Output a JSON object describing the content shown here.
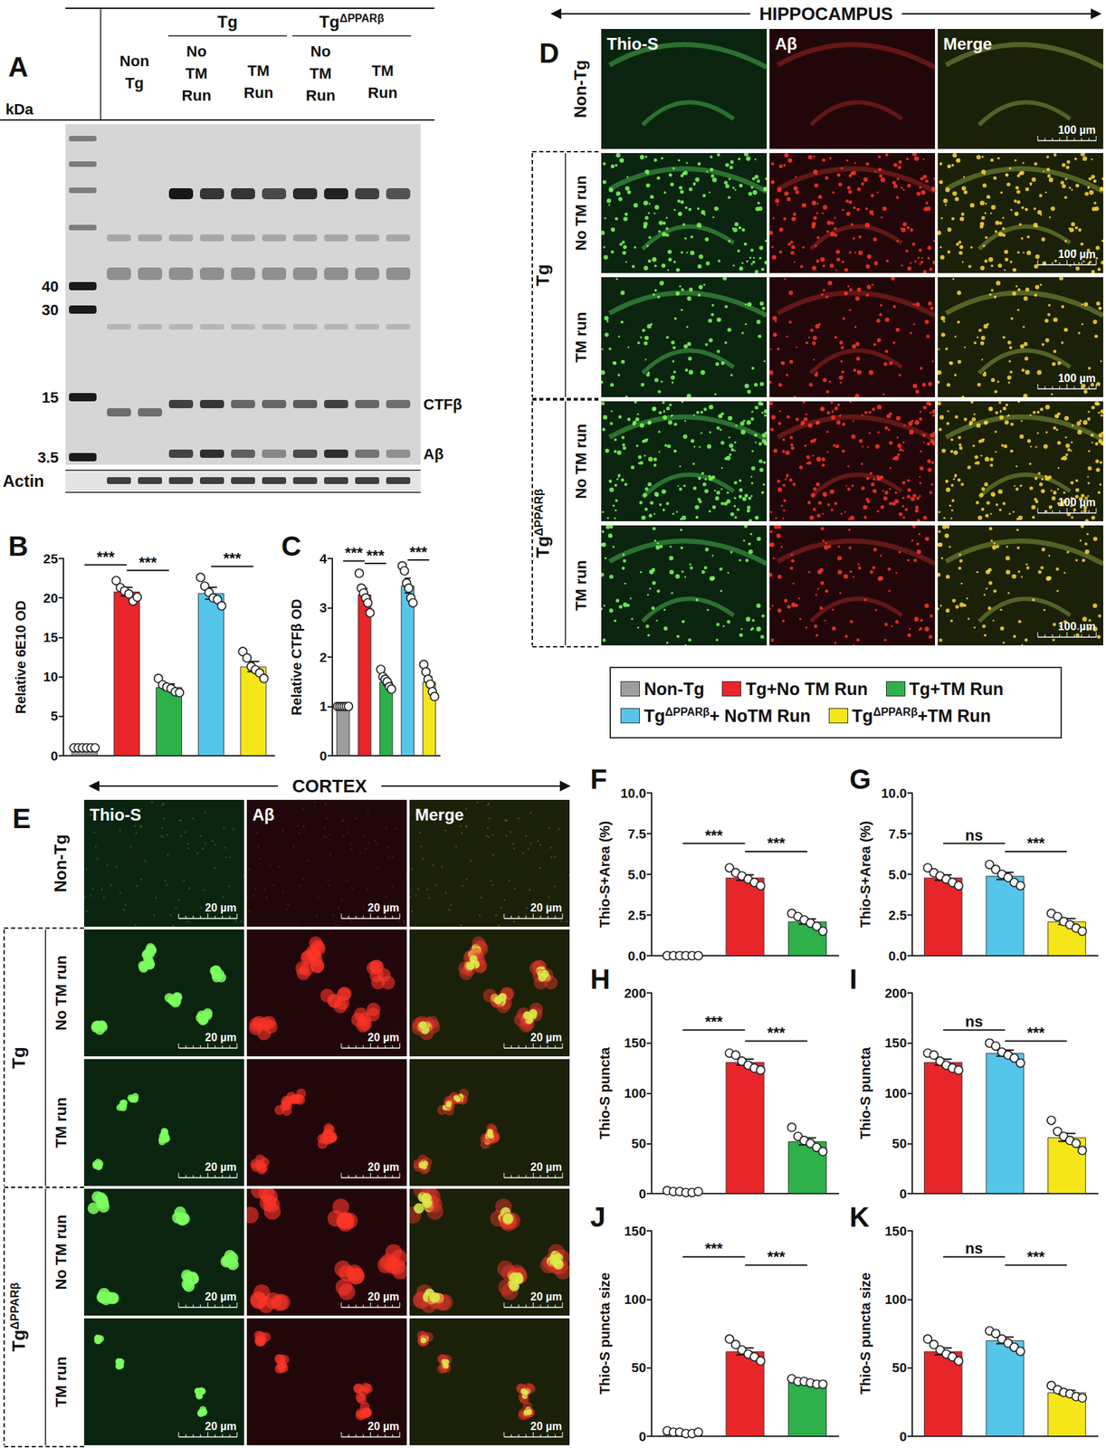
{
  "blot": {
    "panel": "A",
    "unit": "kDa",
    "groups": [
      {
        "label": "Non Tg"
      },
      {
        "label": "Tg",
        "conditions": [
          "No TM Run",
          "TM Run"
        ]
      },
      {
        "label": "TgΔPPARβ",
        "conditions": [
          "No TM Run",
          "TM Run"
        ]
      }
    ],
    "markers": [
      40,
      30,
      15,
      3.5
    ],
    "bands": [
      "CTFβ",
      "Aβ"
    ],
    "loading_control": "Actin"
  },
  "hippocampus": {
    "panel": "D",
    "title": "HIPPOCAMPUS",
    "channels": [
      "Thio-S",
      "Aβ",
      "Merge"
    ],
    "rows": [
      {
        "label": "Non-Tg"
      },
      {
        "label": "Tg",
        "conditions": [
          "No TM run",
          "TM run"
        ]
      },
      {
        "label": "TgΔPPARβ",
        "conditions": [
          "No TM run",
          "TM run"
        ]
      }
    ],
    "scale_bar": "100 µm"
  },
  "cortex": {
    "panel": "E",
    "title": "CORTEX",
    "channels": [
      "Thio-S",
      "Aβ",
      "Merge"
    ],
    "rows": [
      {
        "label": "Non-Tg"
      },
      {
        "label": "Tg",
        "conditions": [
          "No TM run",
          "TM run"
        ]
      },
      {
        "label": "TgΔPPARβ",
        "conditions": [
          "No TM run",
          "TM run"
        ]
      }
    ],
    "scale_bar": "20 µm"
  },
  "legend": {
    "entries": [
      {
        "name": "Non-Tg",
        "color": "#9e9e9e"
      },
      {
        "name": "Tg+No TM Run",
        "color": "#e8262a"
      },
      {
        "name": "Tg+TM Run",
        "color": "#2eb04a"
      },
      {
        "name": "TgΔPPARβ+ NoTM Run",
        "color": "#56c5ea"
      },
      {
        "name": "TgΔPPARβ+TM Run",
        "color": "#f5e61a"
      }
    ]
  },
  "chart_data": [
    {
      "panel": "B",
      "type": "bar",
      "y_label": "Relative 6E10 OD",
      "categories": [
        "Non-Tg",
        "Tg+No TM Run",
        "Tg+TM Run",
        "TgΔPPARβ+ NoTM Run",
        "TgΔPPARβ+TM Run"
      ],
      "colors": [
        "#9e9e9e",
        "#e8262a",
        "#2eb04a",
        "#56c5ea",
        "#f5e61a"
      ],
      "values": [
        1.0,
        20.8,
        8.7,
        20.6,
        11.3
      ],
      "errors": [
        0.05,
        0.55,
        0.4,
        0.75,
        0.65
      ],
      "points": [
        [
          1,
          1,
          1,
          1,
          1,
          1
        ],
        [
          22.2,
          21.3,
          20.9,
          20.5,
          19.6,
          20.1
        ],
        [
          9.8,
          9.0,
          8.7,
          8.5,
          8.1,
          8.0
        ],
        [
          22.6,
          21.5,
          20.7,
          20.0,
          19.8,
          19.0
        ],
        [
          13.2,
          12.4,
          11.3,
          10.9,
          10.5,
          9.8
        ]
      ],
      "ylim": [
        0,
        25
      ],
      "yticks": [
        0,
        5,
        10,
        15,
        20,
        25
      ],
      "grid": false,
      "tick_labels": "y",
      "annotations": [
        {
          "text": "***",
          "from": 0,
          "to": 1,
          "y": 24.2
        },
        {
          "text": "***",
          "from": 1,
          "to": 2,
          "y": 23.5
        },
        {
          "text": "***",
          "from": 3,
          "to": 4,
          "y": 24.0
        }
      ]
    },
    {
      "panel": "C",
      "type": "bar",
      "y_label": "Relative CTFβ OD",
      "categories": [
        "Non-Tg",
        "Tg+No TM Run",
        "Tg+TM Run",
        "TgΔPPARβ+ NoTM Run",
        "TgΔPPARβ+TM Run"
      ],
      "colors": [
        "#9e9e9e",
        "#e8262a",
        "#2eb04a",
        "#56c5ea",
        "#f5e61a"
      ],
      "values": [
        1.0,
        3.27,
        1.5,
        3.45,
        1.5
      ],
      "errors": [
        0.01,
        0.12,
        0.07,
        0.15,
        0.1
      ],
      "points": [
        [
          1,
          1,
          1,
          1,
          1,
          1
        ],
        [
          3.7,
          3.4,
          3.3,
          3.2,
          3.1,
          2.9
        ],
        [
          1.75,
          1.6,
          1.55,
          1.5,
          1.4,
          1.35
        ],
        [
          3.85,
          3.75,
          3.5,
          3.4,
          3.2,
          3.1
        ],
        [
          1.85,
          1.7,
          1.55,
          1.45,
          1.3,
          1.2
        ]
      ],
      "ylim": [
        0,
        4
      ],
      "yticks": [
        0,
        1,
        2,
        3,
        4
      ],
      "grid": false,
      "tick_labels": "y",
      "annotations": [
        {
          "text": "***",
          "from": 0,
          "to": 1,
          "y": 3.95
        },
        {
          "text": "***",
          "from": 1,
          "to": 2,
          "y": 3.9
        },
        {
          "text": "***",
          "from": 3,
          "to": 4,
          "y": 3.97
        }
      ]
    },
    {
      "panel": "F",
      "type": "bar",
      "y_label": "Thio-S+Area (%)",
      "categories": [
        "Non-Tg",
        "Tg+No TM Run",
        "Tg+TM Run"
      ],
      "colors": [
        "#9e9e9e",
        "#e8262a",
        "#2eb04a"
      ],
      "values": [
        0.0,
        4.8,
        2.1
      ],
      "errors": [
        0,
        0.17,
        0.16
      ],
      "points": [
        [
          0,
          0,
          0,
          0,
          0,
          0
        ],
        [
          5.4,
          5.1,
          4.9,
          4.7,
          4.5,
          4.3
        ],
        [
          2.6,
          2.4,
          2.2,
          2.0,
          1.8,
          1.5
        ]
      ],
      "ylim": [
        0,
        10
      ],
      "yticks": [
        {
          "value": 0,
          "label": "0.0"
        },
        {
          "value": 2.5,
          "label": "2.5"
        },
        {
          "value": 5,
          "label": "5.0"
        },
        {
          "value": 7.5,
          "label": "7.5"
        },
        {
          "value": 10,
          "label": "10.0"
        }
      ],
      "grid": false,
      "tick_labels": "y",
      "annotations": [
        {
          "text": "***",
          "from": 0,
          "to": 1,
          "y": 6.9
        },
        {
          "text": "***",
          "from": 1,
          "to": 2,
          "y": 6.4
        }
      ]
    },
    {
      "panel": "G",
      "type": "bar",
      "y_label": "Thio-S+Area (%)",
      "categories": [
        "Tg+No TM Run",
        "TgΔPPARβ+ NoTM Run",
        "TgΔPPARβ+TM Run"
      ],
      "colors": [
        "#e8262a",
        "#56c5ea",
        "#f5e61a"
      ],
      "values": [
        4.8,
        4.9,
        2.1
      ],
      "errors": [
        0.17,
        0.22,
        0.18
      ],
      "points": [
        [
          5.4,
          5.1,
          4.9,
          4.7,
          4.5,
          4.3
        ],
        [
          5.6,
          5.3,
          5.0,
          4.8,
          4.5,
          4.3
        ],
        [
          2.6,
          2.4,
          2.1,
          1.9,
          1.7,
          1.5
        ]
      ],
      "ylim": [
        0,
        10
      ],
      "yticks": [
        {
          "value": 0,
          "label": "0.0"
        },
        {
          "value": 2.5,
          "label": "2.5"
        },
        {
          "value": 5,
          "label": "5.0"
        },
        {
          "value": 7.5,
          "label": "7.5"
        },
        {
          "value": 10,
          "label": "10.0"
        }
      ],
      "grid": false,
      "tick_labels": "y",
      "annotations": [
        {
          "text": "ns",
          "from": 0,
          "to": 1,
          "y": 6.9
        },
        {
          "text": "***",
          "from": 1,
          "to": 2,
          "y": 6.4
        }
      ]
    },
    {
      "panel": "H",
      "type": "bar",
      "y_label": "Thio-S puncta",
      "categories": [
        "Non-Tg",
        "Tg+No TM Run",
        "Tg+TM Run"
      ],
      "colors": [
        "#9e9e9e",
        "#e8262a",
        "#2eb04a"
      ],
      "values": [
        2,
        131,
        52
      ],
      "errors": [
        0.4,
        3,
        3.5
      ],
      "points": [
        [
          3,
          2,
          2,
          1,
          1,
          2
        ],
        [
          140,
          138,
          132,
          128,
          125,
          123
        ],
        [
          66,
          57,
          53,
          50,
          46,
          42
        ]
      ],
      "ylim": [
        0,
        200
      ],
      "yticks": [
        0,
        50,
        100,
        150,
        200
      ],
      "grid": false,
      "tick_labels": "y",
      "annotations": [
        {
          "text": "***",
          "from": 0,
          "to": 1,
          "y": 163
        },
        {
          "text": "***",
          "from": 1,
          "to": 2,
          "y": 152
        }
      ]
    },
    {
      "panel": "I",
      "type": "bar",
      "y_label": "Thio-S puncta",
      "categories": [
        "Tg+No TM Run",
        "TgΔPPARβ+ NoTM Run",
        "TgΔPPARβ+TM Run"
      ],
      "colors": [
        "#e8262a",
        "#56c5ea",
        "#f5e61a"
      ],
      "values": [
        131,
        140,
        56
      ],
      "errors": [
        3,
        3,
        4
      ],
      "points": [
        [
          140,
          138,
          132,
          128,
          125,
          123
        ],
        [
          150,
          147,
          141,
          138,
          135,
          130
        ],
        [
          73,
          62,
          57,
          53,
          50,
          43
        ]
      ],
      "ylim": [
        0,
        200
      ],
      "yticks": [
        0,
        50,
        100,
        150,
        200
      ],
      "grid": false,
      "tick_labels": "y",
      "annotations": [
        {
          "text": "ns",
          "from": 0,
          "to": 1,
          "y": 163
        },
        {
          "text": "***",
          "from": 1,
          "to": 2,
          "y": 152
        }
      ]
    },
    {
      "panel": "J",
      "type": "bar",
      "y_label": "Thio-S puncta size",
      "categories": [
        "Non-Tg",
        "Tg+No TM Run",
        "Tg+TM Run"
      ],
      "colors": [
        "#9e9e9e",
        "#e8262a",
        "#2eb04a"
      ],
      "values": [
        3,
        62,
        39.5
      ],
      "errors": [
        0.3,
        2.5,
        0.7
      ],
      "points": [
        [
          4,
          3,
          3,
          2,
          2,
          3
        ],
        [
          71,
          67,
          63,
          60,
          58,
          55
        ],
        [
          42,
          40,
          40,
          39,
          38,
          38
        ]
      ],
      "ylim": [
        0,
        150
      ],
      "yticks": [
        0,
        50,
        100,
        150
      ],
      "grid": false,
      "tick_labels": "y",
      "annotations": [
        {
          "text": "***",
          "from": 0,
          "to": 1,
          "y": 131
        },
        {
          "text": "***",
          "from": 1,
          "to": 2,
          "y": 125
        }
      ]
    },
    {
      "panel": "K",
      "type": "bar",
      "y_label": "Thio-S puncta size",
      "categories": [
        "Tg+No TM Run",
        "TgΔPPARβ+ NoTM Run",
        "TgΔPPARβ+TM Run"
      ],
      "colors": [
        "#e8262a",
        "#56c5ea",
        "#f5e61a"
      ],
      "values": [
        62,
        70,
        32
      ],
      "errors": [
        2.5,
        2.4,
        1.5
      ],
      "points": [
        [
          71,
          67,
          63,
          60,
          58,
          55
        ],
        [
          77,
          75,
          71,
          68,
          65,
          62
        ],
        [
          37,
          34,
          32,
          31,
          29,
          28
        ]
      ],
      "ylim": [
        0,
        150
      ],
      "yticks": [
        0,
        50,
        100,
        150
      ],
      "grid": false,
      "tick_labels": "y",
      "annotations": [
        {
          "text": "ns",
          "from": 0,
          "to": 1,
          "y": 131
        },
        {
          "text": "***",
          "from": 1,
          "to": 2,
          "y": 125
        }
      ]
    }
  ]
}
